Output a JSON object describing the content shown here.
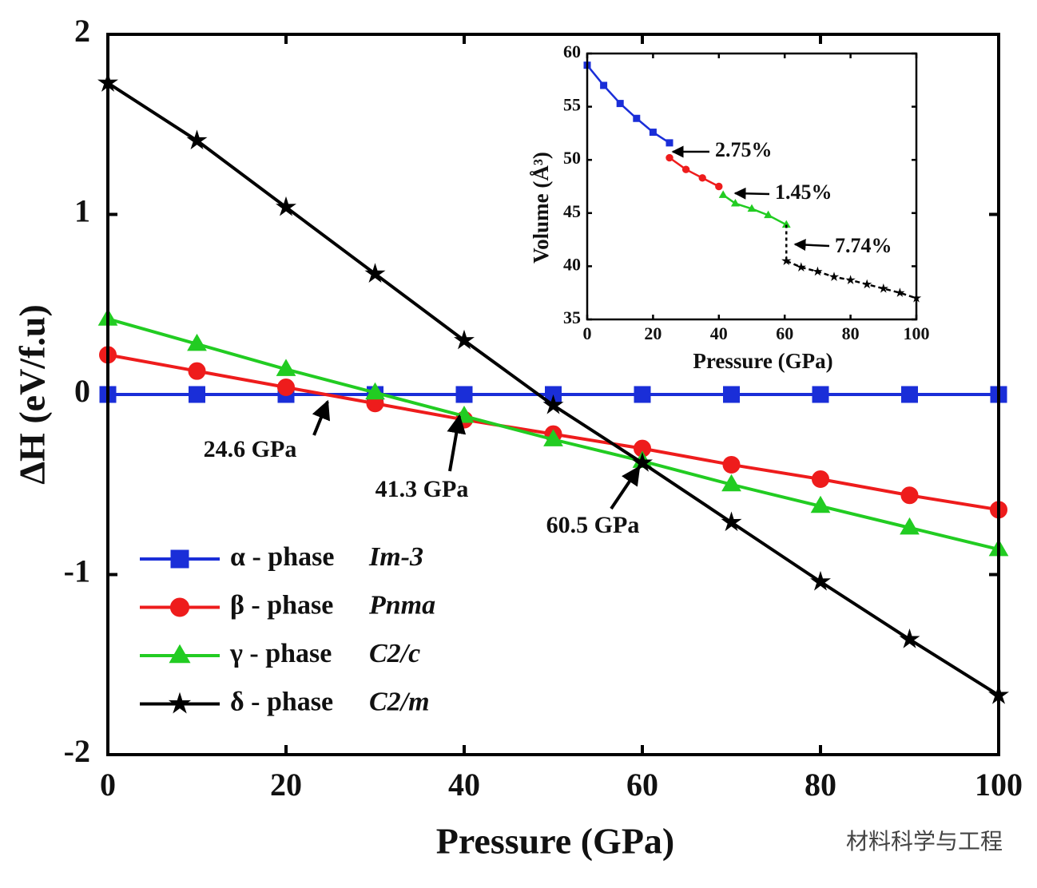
{
  "chart_data": [
    {
      "type": "line",
      "x_label": "Pressure (GPa)",
      "y_label": "ΔH (eV/f.u)",
      "x": [
        0,
        10,
        20,
        30,
        40,
        50,
        60,
        70,
        80,
        90,
        100
      ],
      "xlim": [
        0,
        100
      ],
      "xticks": [
        0,
        20,
        40,
        60,
        80,
        100
      ],
      "ylim": [
        -2,
        2
      ],
      "yticks": [
        -2,
        -1,
        0,
        1,
        2
      ],
      "legend": "lower left",
      "series": [
        {
          "name": "α - phase",
          "phase_label": "Im-3",
          "color": "#1a2ed8",
          "marker": "square",
          "values": [
            0,
            0,
            0,
            0,
            0,
            0,
            0,
            0,
            0,
            0,
            0
          ]
        },
        {
          "name": "β - phase",
          "phase_label": "Pnma",
          "color": "#ee1c1c",
          "marker": "circle",
          "values": [
            0.22,
            0.13,
            0.04,
            -0.05,
            -0.14,
            -0.22,
            -0.3,
            -0.39,
            -0.47,
            -0.56,
            -0.64
          ]
        },
        {
          "name": "γ - phase",
          "phase_label": "C2/c",
          "color": "#22cc22",
          "marker": "triangle",
          "values": [
            0.42,
            0.28,
            0.14,
            0.01,
            -0.12,
            -0.25,
            -0.37,
            -0.5,
            -0.62,
            -0.74,
            -0.86
          ]
        },
        {
          "name": "δ - phase",
          "phase_label": "C2/m",
          "color": "#000000",
          "marker": "star",
          "values": [
            1.73,
            1.41,
            1.04,
            0.67,
            0.3,
            -0.06,
            -0.38,
            -0.71,
            -1.04,
            -1.36,
            -1.67
          ]
        }
      ],
      "annotations": [
        "24.6 GPa",
        "41.3 GPa",
        "60.5 GPa"
      ],
      "watermark": "材料科学与工程"
    },
    {
      "type": "line",
      "x_label": "Pressure (GPa)",
      "y_label": "Volume (Å³)",
      "xlim": [
        0,
        100
      ],
      "xticks": [
        0,
        20,
        40,
        60,
        80,
        100
      ],
      "ylim": [
        35,
        60
      ],
      "yticks": [
        35,
        40,
        45,
        50,
        55,
        60
      ],
      "series": [
        {
          "color": "#1a2ed8",
          "marker": "square",
          "dashed": false,
          "x": [
            0,
            5,
            10,
            15,
            20,
            25
          ],
          "values": [
            58.9,
            57.0,
            55.3,
            53.9,
            52.6,
            51.6
          ]
        },
        {
          "color": "#ee1c1c",
          "marker": "circle",
          "dashed": false,
          "x": [
            25,
            30,
            35,
            40
          ],
          "values": [
            50.2,
            49.1,
            48.3,
            47.5
          ]
        },
        {
          "color": "#22cc22",
          "marker": "triangle",
          "dashed": false,
          "x": [
            41.3,
            45,
            50,
            55,
            60.5
          ],
          "values": [
            46.7,
            45.9,
            45.4,
            44.8,
            43.9
          ]
        },
        {
          "color": "#000000",
          "marker": "star",
          "dashed": true,
          "x": [
            60.5,
            65,
            70,
            75,
            80,
            85,
            90,
            95,
            100
          ],
          "values": [
            40.5,
            39.9,
            39.5,
            39.0,
            38.7,
            38.3,
            37.9,
            37.5,
            37.0
          ]
        }
      ],
      "annotations": [
        "2.75%",
        "1.45%",
        "7.74%"
      ]
    }
  ]
}
